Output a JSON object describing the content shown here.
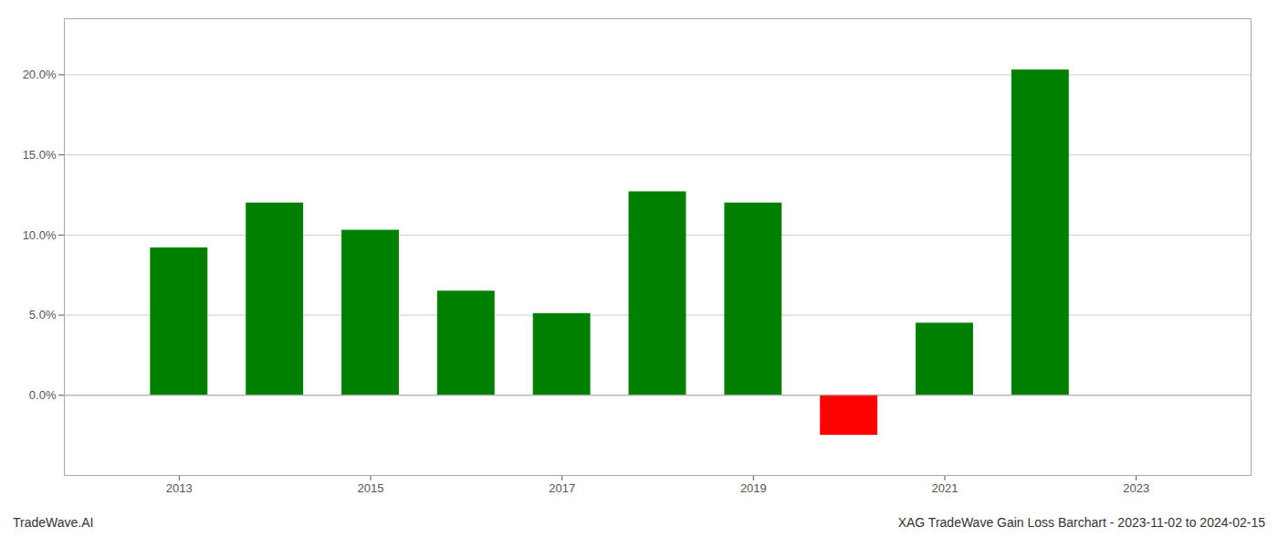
{
  "chart_data": {
    "type": "bar",
    "x": [
      2013,
      2014,
      2015,
      2016,
      2017,
      2018,
      2019,
      2020,
      2021,
      2022
    ],
    "values": [
      0.092,
      0.12,
      0.103,
      0.065,
      0.051,
      0.127,
      0.12,
      -0.025,
      0.045,
      0.203
    ],
    "colors": [
      "#008000",
      "#008000",
      "#008000",
      "#008000",
      "#008000",
      "#008000",
      "#008000",
      "#ff0000",
      "#008000",
      "#008000"
    ],
    "xlim": [
      2011.8,
      2024.2
    ],
    "xticks": [
      2013,
      2015,
      2017,
      2019,
      2021,
      2023
    ],
    "ylim": [
      -0.05,
      0.235
    ],
    "yticks": [
      {
        "value": 0.0,
        "label": "0.0%"
      },
      {
        "value": 0.05,
        "label": "5.0%"
      },
      {
        "value": 0.1,
        "label": "10.0%"
      },
      {
        "value": 0.15,
        "label": "15.0%"
      },
      {
        "value": 0.2,
        "label": "20.0%"
      }
    ],
    "grid": true,
    "annotations": [
      "TradeWave.AI",
      "XAG TradeWave Gain Loss Barchart - 2023-11-02 to 2024-02-15"
    ]
  }
}
